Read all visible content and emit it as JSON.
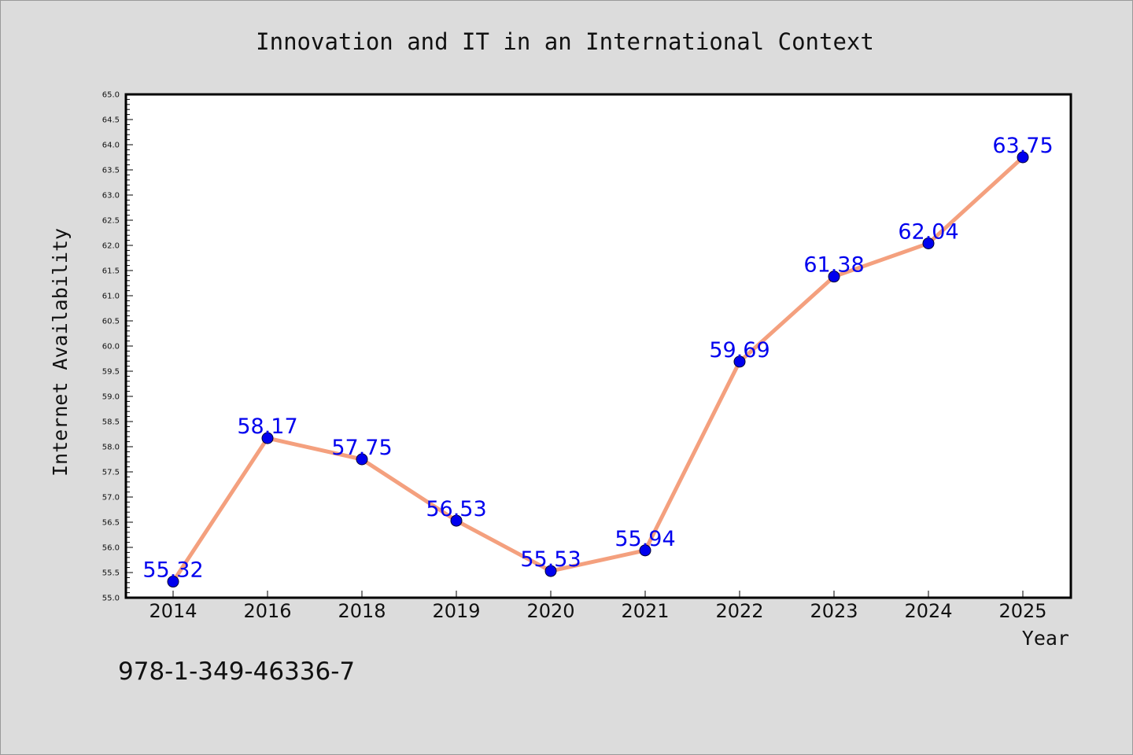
{
  "figure": {
    "title": "Innovation and IT in an International Context",
    "footnote": "978-1-349-46336-7"
  },
  "colors": {
    "background": "#dcdcdc",
    "plot_area": "#ffffff",
    "line": "#f4a07e",
    "marker": "#0000ee",
    "data_label": "#0000ee"
  },
  "chart_data": {
    "type": "line",
    "title": "Innovation and IT in an International Context",
    "xlabel": "Year",
    "ylabel": "Internet Availability",
    "categories": [
      "2014",
      "2016",
      "2018",
      "2019",
      "2020",
      "2021",
      "2022",
      "2023",
      "2024",
      "2025"
    ],
    "series": [
      {
        "values": [
          55.32,
          58.17,
          57.75,
          56.53,
          55.53,
          55.94,
          59.69,
          61.38,
          62.04,
          63.75
        ]
      }
    ],
    "data_labels": [
      "55.32",
      "58.17",
      "57.75",
      "56.53",
      "55.53",
      "55.94",
      "59.69",
      "61.38",
      "62.04",
      "63.75"
    ],
    "ylim": [
      55.0,
      65.0
    ],
    "ytick_step": 0.5,
    "yticks": [
      "55.0",
      "55.5",
      "56.0",
      "56.5",
      "57.0",
      "57.5",
      "58.0",
      "58.5",
      "59.0",
      "59.5",
      "60.0",
      "60.5",
      "61.0",
      "61.5",
      "62.0",
      "62.5",
      "63.0",
      "63.5",
      "64.0",
      "64.5",
      "65.0"
    ],
    "grid": false,
    "legend": "none"
  }
}
